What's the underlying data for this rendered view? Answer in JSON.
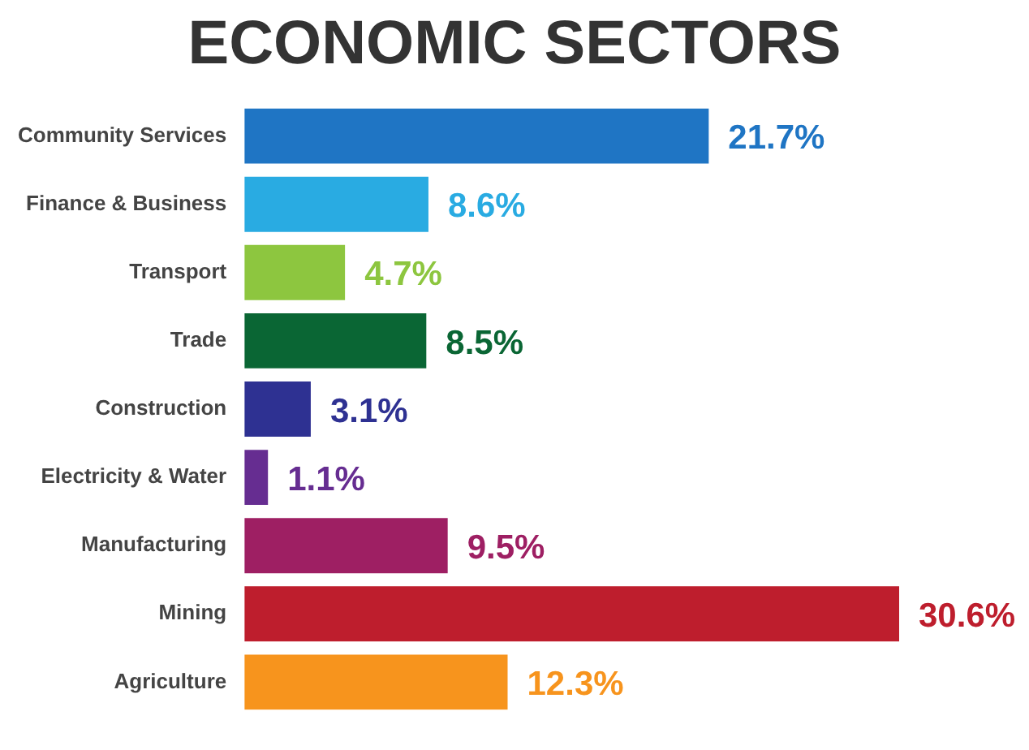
{
  "chart_data": {
    "type": "bar",
    "orientation": "horizontal",
    "title": "ECONOMIC SECTORS",
    "categories": [
      "Community Services",
      "Finance & Business",
      "Transport",
      "Trade",
      "Construction",
      "Electricity & Water",
      "Manufacturing",
      "Mining",
      "Agriculture"
    ],
    "values": [
      21.7,
      8.6,
      4.7,
      8.5,
      3.1,
      1.1,
      9.5,
      30.6,
      12.3
    ],
    "colors": [
      "#1f75c4",
      "#29abe2",
      "#8dc63f",
      "#0a6634",
      "#2e3192",
      "#662d91",
      "#9e1f63",
      "#be1e2d",
      "#f7941d"
    ],
    "value_labels": [
      "21.7%",
      "8.6%",
      "4.7%",
      "8.5%",
      "3.1%",
      "1.1%",
      "9.5%",
      "30.6%",
      "12.3%"
    ],
    "grid": false,
    "legend": false
  }
}
